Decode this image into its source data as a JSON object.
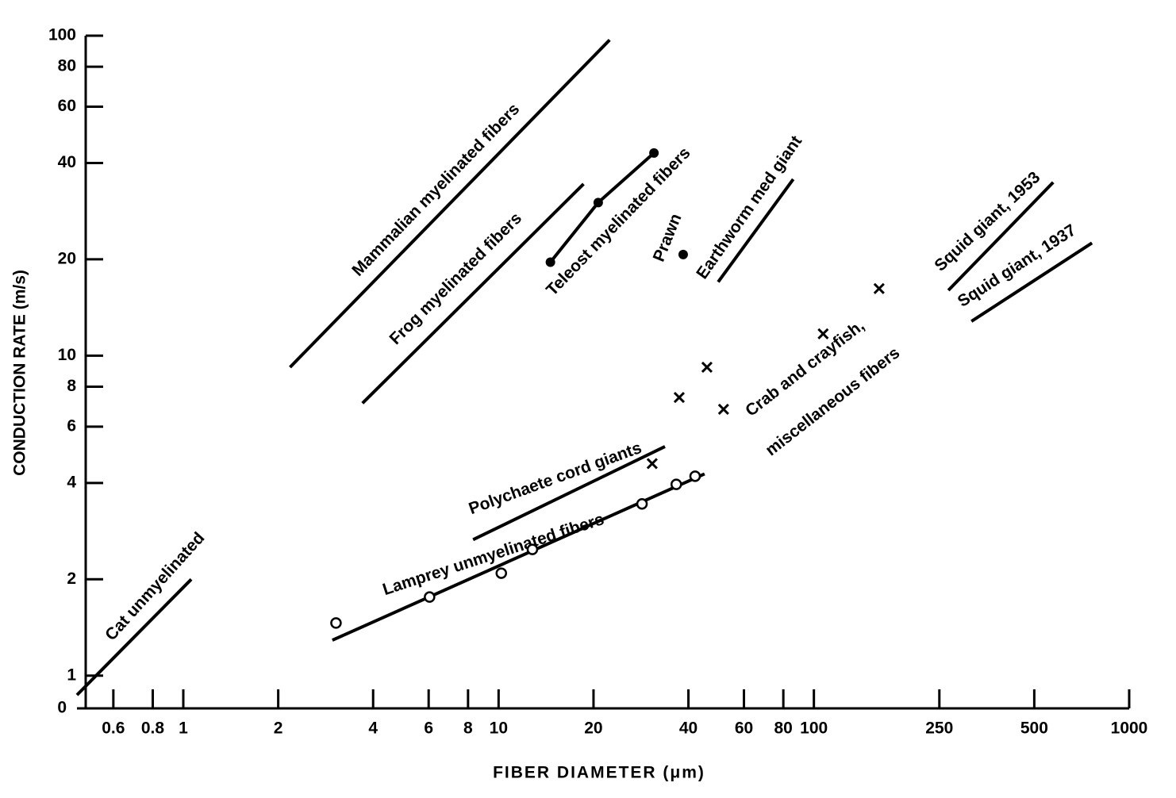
{
  "chart_data": {
    "type": "line",
    "log_x": true,
    "log_y": true,
    "xlabel": "FIBER DIAMETER (μm)",
    "ylabel": "CONDUCTION RATE (m/s)",
    "y_origin_label": "0",
    "xlim": [
      0.46,
      1000
    ],
    "ylim": [
      0.79,
      100
    ],
    "xticks": [
      0.6,
      0.8,
      1,
      2,
      4,
      6,
      8,
      10,
      20,
      40,
      60,
      80,
      100,
      250,
      500,
      1000
    ],
    "yticks": [
      1,
      2,
      4,
      6,
      8,
      10,
      20,
      40,
      60,
      80,
      100
    ],
    "color": "#000000",
    "series": [
      {
        "name": "Mammalian myelinated fibers",
        "marker": "none",
        "x": [
          2.18,
          22.5
        ],
        "values": [
          9.2,
          97
        ]
      },
      {
        "name": "Frog myelinated fibers",
        "marker": "none",
        "x": [
          3.7,
          18.6
        ],
        "values": [
          7.1,
          34.4
        ]
      },
      {
        "name": "Teleost myelinated fibers",
        "marker": "dot",
        "x": [
          14.6,
          20.7,
          31.1
        ],
        "values": [
          19.6,
          30.1,
          43
        ]
      },
      {
        "name": "Prawn",
        "marker": "dot-only",
        "x": [
          38.5
        ],
        "values": [
          20.7
        ]
      },
      {
        "name": "Earthworm med giant",
        "marker": "none",
        "x": [
          49.7,
          86
        ],
        "values": [
          17.0,
          35.6
        ]
      },
      {
        "name": "Squid giant, 1953",
        "marker": "none",
        "x": [
          267,
          574
        ],
        "values": [
          16.0,
          34.8
        ]
      },
      {
        "name": "Squid giant, 1937",
        "marker": "none",
        "x": [
          316,
          762
        ],
        "values": [
          12.8,
          22.5
        ]
      },
      {
        "name": [
          "Crab and crayfish,",
          "miscellaneous fibers"
        ],
        "marker": "cross",
        "x": [
          30.7,
          37.4,
          45.8,
          51.7,
          107,
          161
        ],
        "values": [
          4.6,
          7.4,
          9.2,
          6.8,
          11.7,
          16.2
        ]
      },
      {
        "name": "Polychaete cord giants",
        "marker": "none",
        "x": [
          8.3,
          33.7
        ],
        "values": [
          2.66,
          5.2
        ]
      },
      {
        "name": "Lamprey unmyelinated fibers",
        "marker": "none",
        "x": [
          2.97,
          45
        ],
        "values": [
          1.29,
          4.27
        ]
      },
      {
        "marker": "circle",
        "x": [
          3.05,
          6.04,
          10.2,
          12.8,
          28.5,
          36.6,
          42
        ],
        "values": [
          1.46,
          1.76,
          2.09,
          2.48,
          3.44,
          3.96,
          4.2
        ]
      },
      {
        "name": "Cat unmyelinated",
        "marker": "none",
        "x": [
          0.46,
          1.06
        ],
        "values": [
          0.87,
          2.0
        ]
      }
    ]
  }
}
